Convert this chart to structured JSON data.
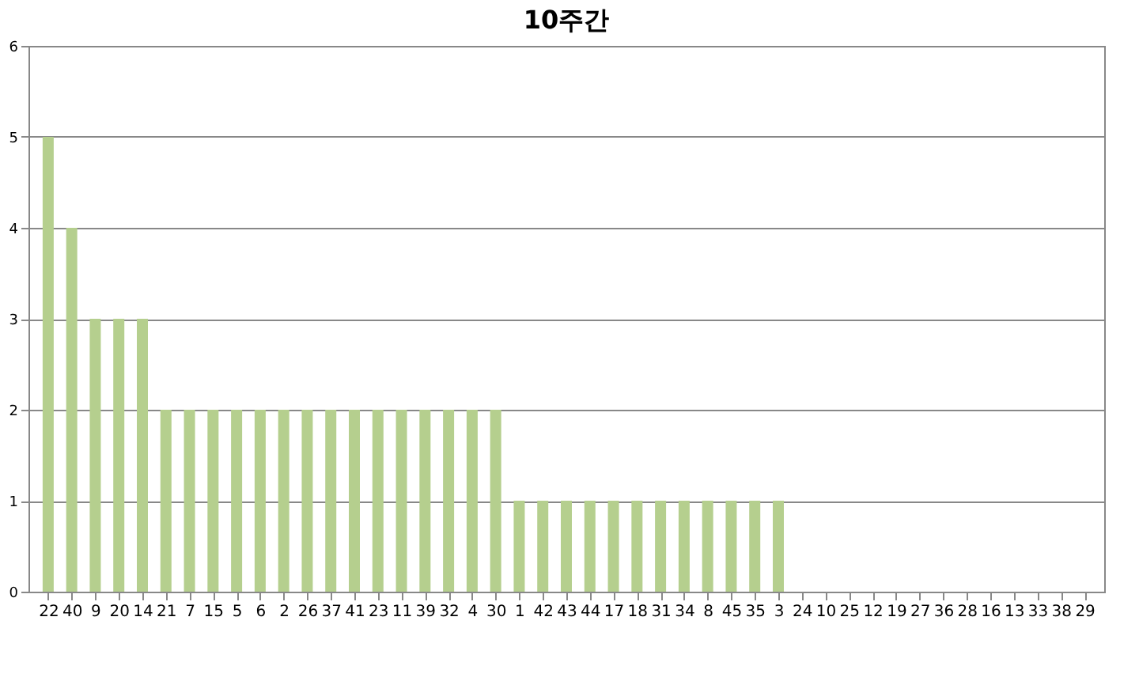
{
  "chart_data": {
    "type": "bar",
    "title": "10주간",
    "categories": [
      "22",
      "40",
      "9",
      "20",
      "14",
      "21",
      "7",
      "15",
      "5",
      "6",
      "2",
      "26",
      "37",
      "41",
      "23",
      "11",
      "39",
      "32",
      "4",
      "30",
      "1",
      "42",
      "43",
      "44",
      "17",
      "18",
      "31",
      "34",
      "8",
      "45",
      "35",
      "3",
      "24",
      "10",
      "25",
      "12",
      "19",
      "27",
      "36",
      "28",
      "16",
      "13",
      "33",
      "38",
      "29"
    ],
    "values": [
      5,
      4,
      3,
      3,
      3,
      2,
      2,
      2,
      2,
      2,
      2,
      2,
      2,
      2,
      2,
      2,
      2,
      2,
      2,
      2,
      1,
      1,
      1,
      1,
      1,
      1,
      1,
      1,
      1,
      1,
      1,
      1,
      0,
      0,
      0,
      0,
      0,
      0,
      0,
      0,
      0,
      0,
      0,
      0,
      0
    ],
    "color": "#b5cf8e",
    "ylim": [
      0,
      6
    ],
    "yticks": [
      0,
      1,
      2,
      3,
      4,
      5,
      6
    ],
    "grid": "y"
  }
}
